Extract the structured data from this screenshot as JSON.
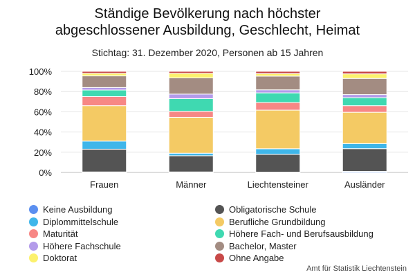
{
  "chart_data": {
    "type": "bar",
    "stacked": true,
    "title_lines": [
      "Ständige Bevölkerung nach höchster",
      "abgeschlossener Ausbildung, Geschlecht, Heimat"
    ],
    "subtitle": "Stichtag: 31. Dezember 2020, Personen ab 15 Jahren",
    "source": "Amt für Statistik Liechtenstein",
    "categories": [
      "Frauen",
      "Männer",
      "Liechtensteiner",
      "Ausländer"
    ],
    "ylim": [
      0,
      100
    ],
    "y_ticks": [
      0,
      20,
      40,
      60,
      80,
      100
    ],
    "y_tick_labels": [
      "0%",
      "20%",
      "40%",
      "60%",
      "80%",
      "100%"
    ],
    "grid": true,
    "legend_position": "bottom",
    "series": [
      {
        "name": "Keine Ausbildung",
        "color": "#5b8ff0",
        "values": [
          0.5,
          0.5,
          0.3,
          1.0
        ]
      },
      {
        "name": "Obligatorische Schule",
        "color": "#545454",
        "values": [
          22.5,
          16.0,
          17.5,
          22.5
        ]
      },
      {
        "name": "Diplommittelschule",
        "color": "#3fb6ea",
        "values": [
          8.0,
          2.5,
          5.5,
          5.0
        ]
      },
      {
        "name": "Berufliche Grundbildung",
        "color": "#f4ca64",
        "values": [
          35.0,
          35.5,
          38.0,
          31.0
        ]
      },
      {
        "name": "Maturität",
        "color": "#f78785",
        "values": [
          9.0,
          6.0,
          7.5,
          6.5
        ]
      },
      {
        "name": "Höhere Fach- und Berufsausbildung",
        "color": "#3fd9b1",
        "values": [
          6.5,
          12.5,
          9.5,
          8.0
        ]
      },
      {
        "name": "Höhere Fachschule",
        "color": "#b39bea",
        "values": [
          2.5,
          4.5,
          3.0,
          3.0
        ]
      },
      {
        "name": "Bachelor, Master",
        "color": "#a38c82",
        "values": [
          11.5,
          16.0,
          13.5,
          16.0
        ]
      },
      {
        "name": "Doktorat",
        "color": "#fcf16d",
        "values": [
          2.5,
          4.5,
          2.5,
          4.5
        ]
      },
      {
        "name": "Ohne Angabe",
        "color": "#c84948",
        "values": [
          2.0,
          2.0,
          2.2,
          2.5
        ]
      }
    ],
    "legend_order": [
      0,
      2,
      4,
      6,
      8,
      1,
      3,
      5,
      7,
      9
    ]
  }
}
